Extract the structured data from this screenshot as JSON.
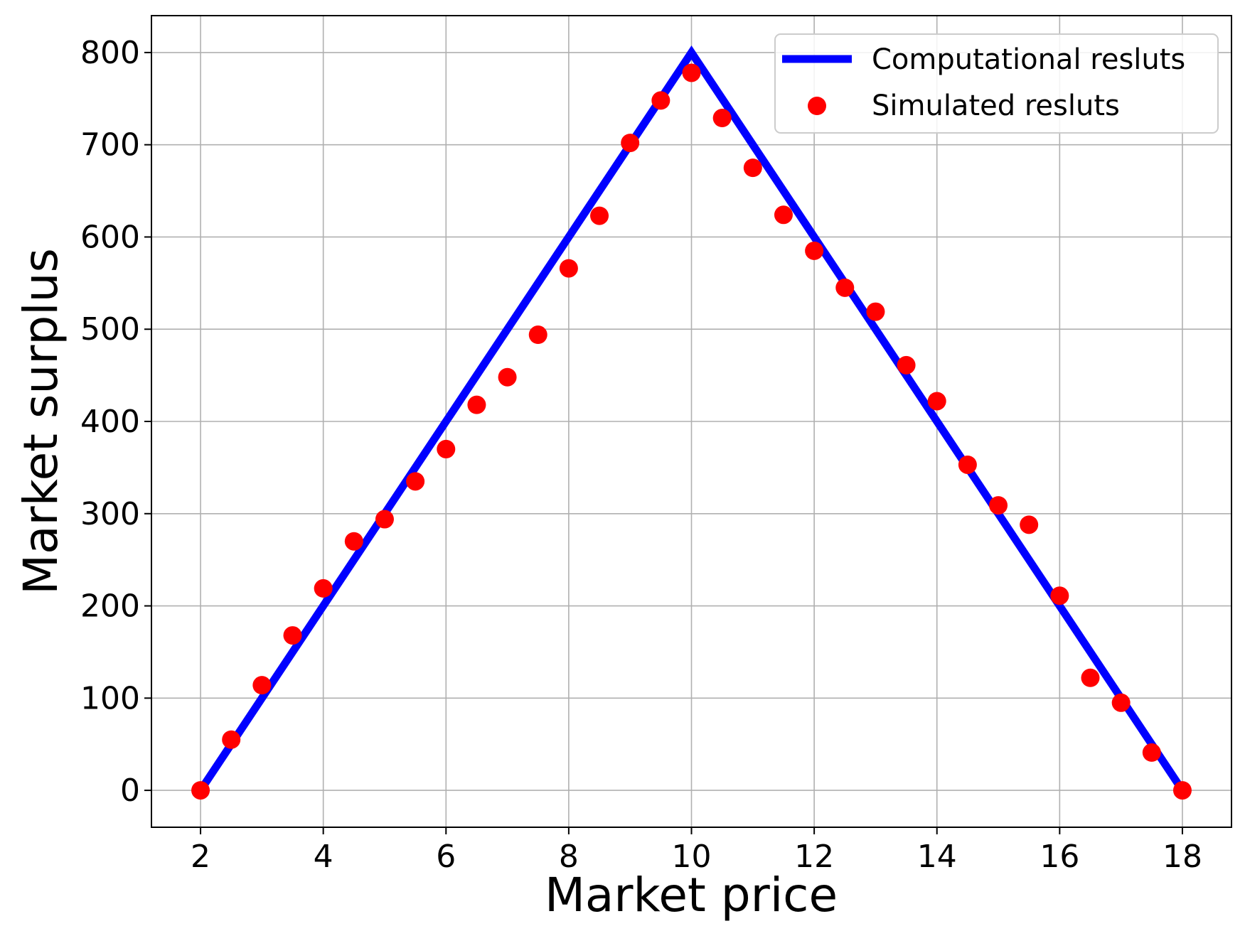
{
  "chart_data": {
    "type": "line",
    "title": "",
    "xlabel": "Market price",
    "ylabel": "Market surplus",
    "xlim": [
      1.2,
      18.8
    ],
    "ylim": [
      -40,
      840
    ],
    "xticks": [
      2,
      4,
      6,
      8,
      10,
      12,
      14,
      16,
      18
    ],
    "yticks": [
      0,
      100,
      200,
      300,
      400,
      500,
      600,
      700,
      800
    ],
    "grid": true,
    "legend_position": "top-right",
    "series": [
      {
        "name": "Computational resluts",
        "kind": "line",
        "color": "#0000ff",
        "x": [
          2,
          10,
          18
        ],
        "y": [
          0,
          800,
          0
        ]
      },
      {
        "name": "Simulated resluts",
        "kind": "scatter",
        "color": "#ff0000",
        "x": [
          2,
          2.5,
          3,
          3.5,
          4,
          4.5,
          5,
          5.5,
          6,
          6.5,
          7,
          7.5,
          8,
          8.5,
          9,
          9.5,
          10,
          10.5,
          11,
          11.5,
          12,
          12.5,
          13,
          13.5,
          14,
          14.5,
          15,
          15.5,
          16,
          16.5,
          17,
          17.5,
          18
        ],
        "y": [
          0,
          55,
          114,
          168,
          219,
          270,
          294,
          335,
          370,
          418,
          448,
          494,
          566,
          623,
          702,
          748,
          778,
          729,
          675,
          624,
          585,
          545,
          519,
          461,
          422,
          353,
          309,
          288,
          211,
          122,
          95,
          41,
          0
        ]
      }
    ]
  }
}
